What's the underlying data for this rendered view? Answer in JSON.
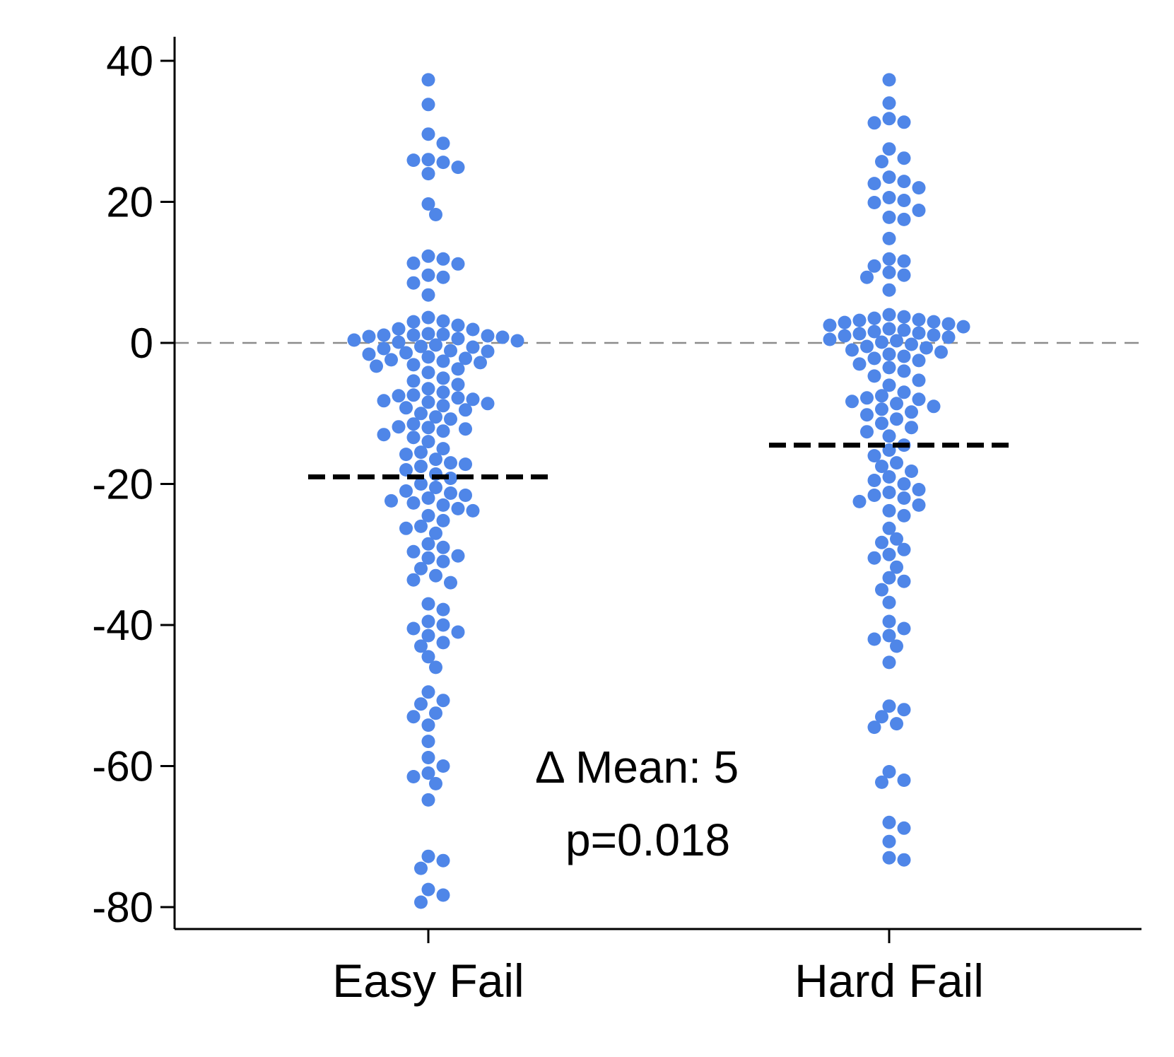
{
  "chart_data": {
    "type": "scatter",
    "title": "",
    "xlabel": "",
    "ylabel": "",
    "categories": [
      "Easy Fail",
      "Hard Fail"
    ],
    "ylim": [
      -83,
      43
    ],
    "yticks": [
      40,
      20,
      0,
      -20,
      -40,
      -60,
      -80
    ],
    "ytick_labels": [
      "40",
      "20",
      "0",
      "-20",
      "-40",
      "-60",
      "-80"
    ],
    "grid": false,
    "point_color": "#4f86e8",
    "reference_line": {
      "y": 0,
      "style": "dashed",
      "color": "#8c8c8c"
    },
    "mean_line_color": "#000000",
    "series": [
      {
        "category": "Easy Fail",
        "mean": -19,
        "values": [
          37.3,
          33.8,
          29.6,
          28.3,
          26.0,
          25.6,
          25.9,
          24.9,
          24.0,
          19.7,
          18.2,
          12.3,
          11.9,
          11.3,
          11.2,
          9.6,
          9.3,
          8.5,
          6.8,
          3.6,
          3.1,
          3.0,
          2.5,
          2.0,
          1.9,
          1.3,
          1.2,
          1.1,
          1.1,
          1.0,
          0.9,
          0.8,
          0.6,
          0.4,
          0.3,
          0.1,
          -0.3,
          -0.5,
          -0.6,
          -0.8,
          -1.1,
          -1.2,
          -1.4,
          -1.6,
          -2.0,
          -2.2,
          -2.4,
          -2.6,
          -2.8,
          -3.1,
          -3.3,
          -3.7,
          -4.2,
          -5.0,
          -5.4,
          -5.9,
          -6.5,
          -7.0,
          -7.4,
          -7.5,
          -7.8,
          -8.0,
          -8.2,
          -8.4,
          -8.6,
          -8.9,
          -9.2,
          -9.5,
          -10.0,
          -10.5,
          -10.8,
          -11.5,
          -11.9,
          -12.0,
          -12.2,
          -12.5,
          -13.0,
          -13.4,
          -14.0,
          -15.0,
          -15.5,
          -15.8,
          -16.5,
          -17.0,
          -17.2,
          -17.5,
          -18.0,
          -18.6,
          -19.2,
          -20.0,
          -20.5,
          -21.0,
          -21.3,
          -21.6,
          -22.0,
          -22.4,
          -22.7,
          -23.0,
          -23.5,
          -23.8,
          -24.5,
          -25.2,
          -26.0,
          -26.3,
          -27.0,
          -28.5,
          -29.0,
          -29.6,
          -30.2,
          -30.5,
          -31.0,
          -32.0,
          -33.0,
          -33.6,
          -34.0,
          -37.0,
          -37.8,
          -39.5,
          -40.0,
          -40.5,
          -41.0,
          -41.5,
          -42.5,
          -43.0,
          -44.5,
          -46.0,
          -49.5,
          -50.7,
          -51.2,
          -52.5,
          -53.0,
          -54.2,
          -56.5,
          -58.8,
          -60.0,
          -61.0,
          -61.5,
          -62.5,
          -64.8,
          -72.8,
          -73.4,
          -74.5,
          -77.5,
          -78.3,
          -79.3
        ]
      },
      {
        "category": "Hard Fail",
        "mean": -14.5,
        "values": [
          37.3,
          34.0,
          31.8,
          31.3,
          31.2,
          27.5,
          26.2,
          25.7,
          23.5,
          22.9,
          22.6,
          22.0,
          20.6,
          20.2,
          19.9,
          18.8,
          17.8,
          17.5,
          14.8,
          11.9,
          11.6,
          10.9,
          10.0,
          9.6,
          9.3,
          7.5,
          4.0,
          3.7,
          3.5,
          3.3,
          3.2,
          3.0,
          2.9,
          2.7,
          2.5,
          2.3,
          2.0,
          1.8,
          1.6,
          1.4,
          1.3,
          1.1,
          1.0,
          0.8,
          0.5,
          0.3,
          0.1,
          -0.2,
          -0.5,
          -0.7,
          -1.0,
          -1.3,
          -1.6,
          -1.9,
          -2.2,
          -2.5,
          -3.0,
          -3.5,
          -4.0,
          -4.7,
          -5.3,
          -6.0,
          -7.0,
          -7.5,
          -7.8,
          -8.0,
          -8.3,
          -8.6,
          -9.0,
          -9.4,
          -9.8,
          -10.2,
          -10.8,
          -11.4,
          -12.0,
          -12.6,
          -13.2,
          -14.5,
          -15.2,
          -16.0,
          -17.0,
          -17.5,
          -18.2,
          -19.0,
          -19.5,
          -20.0,
          -20.8,
          -21.2,
          -21.6,
          -22.0,
          -22.5,
          -23.0,
          -23.8,
          -24.5,
          -26.3,
          -27.8,
          -28.3,
          -29.3,
          -30.0,
          -30.5,
          -31.8,
          -33.3,
          -33.8,
          -35.0,
          -36.8,
          -39.5,
          -40.5,
          -41.5,
          -42.0,
          -43.0,
          -45.3,
          -51.5,
          -52.0,
          -53.0,
          -54.0,
          -54.5,
          -60.8,
          -62.0,
          -62.3,
          -68.0,
          -68.8,
          -70.7,
          -73.0,
          -73.3
        ]
      }
    ],
    "annotations": [
      "Δ Mean:  5",
      "p=0.018"
    ]
  }
}
